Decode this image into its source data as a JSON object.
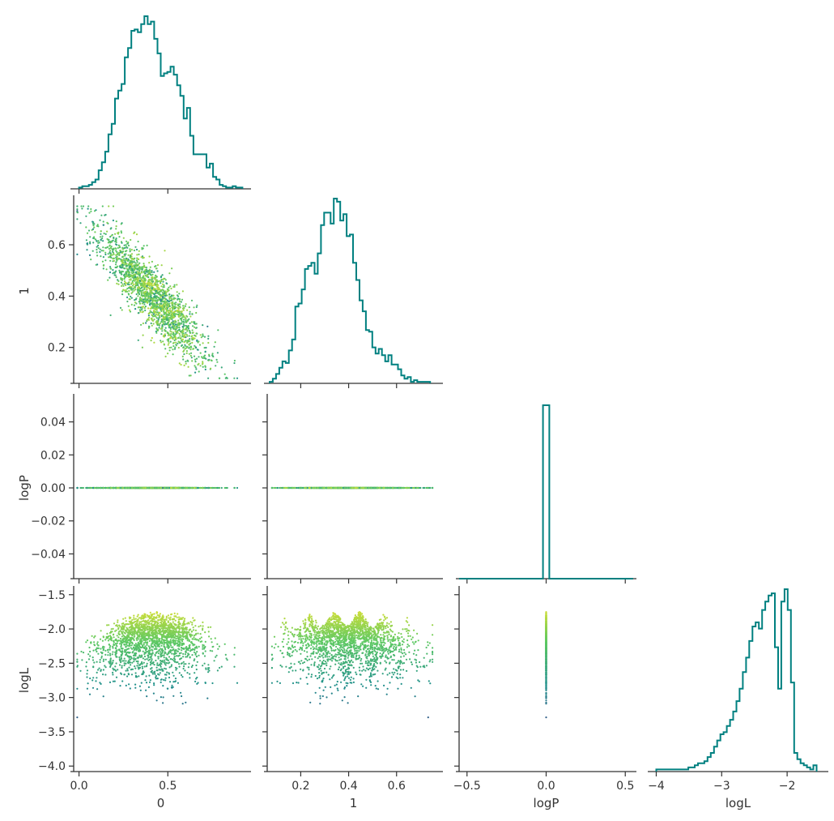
{
  "chart_data": {
    "type": "scatter",
    "layout": "corner-pairplot",
    "variables": [
      "0",
      "1",
      "logP",
      "logL"
    ],
    "axis_labels": {
      "x": [
        "0",
        "1",
        "logP",
        "logL"
      ],
      "y": [
        "1",
        "logP",
        "logL"
      ]
    },
    "ranges": {
      "0": [
        -0.03,
        0.95
      ],
      "1": [
        0.06,
        0.78
      ],
      "logP": [
        -0.055,
        0.055
      ],
      "logL": [
        -4.08,
        -1.42
      ]
    },
    "ticks": {
      "0": {
        "values": [
          0,
          0.5
        ],
        "labels": [
          "0.0",
          "0.5"
        ]
      },
      "1": {
        "values": [
          0.2,
          0.4,
          0.6
        ],
        "labels": [
          "0.2",
          "0.4",
          "0.6"
        ]
      },
      "logP": {
        "values": [
          -0.04,
          -0.02,
          0,
          0.02,
          0.04
        ],
        "labels": [
          "−0.04",
          "−0.02",
          "0.00",
          "0.02",
          "0.04"
        ]
      },
      "logP_x": {
        "values": [
          -0.5,
          0,
          0.5
        ],
        "labels": [
          "−0.5",
          "0.0",
          "0.5"
        ]
      },
      "logL_y": {
        "values": [
          -4,
          -3.5,
          -3,
          -2.5,
          -2,
          -1.5
        ],
        "labels": [
          "−4.0",
          "−3.5",
          "−3.0",
          "−2.5",
          "−2.0",
          "−1.5"
        ]
      },
      "logL_x": {
        "values": [
          -4,
          -3,
          -2
        ],
        "labels": [
          "−4",
          "−3",
          "−2"
        ]
      }
    },
    "logP_x_range": [
      -0.55,
      0.55
    ],
    "histogram_color": "#008080",
    "colormap": "viridis",
    "color_by": "logL",
    "marginals": {
      "0": {
        "edges_range": [
          0.0,
          0.92
        ],
        "counts": [
          1,
          2,
          2,
          3,
          5,
          7,
          14,
          20,
          28,
          41,
          49,
          68,
          74,
          79,
          99,
          106,
          119,
          120,
          118,
          124,
          130,
          124,
          126,
          113,
          102,
          85,
          87,
          88,
          92,
          86,
          78,
          70,
          53,
          61,
          40,
          26,
          26,
          26,
          26,
          16,
          19,
          9,
          7,
          3,
          2,
          1,
          1,
          2,
          1,
          1
        ]
      },
      "1": {
        "edges_range": [
          0.07,
          0.74
        ],
        "counts": [
          1,
          3,
          6,
          10,
          14,
          13,
          21,
          28,
          49,
          51,
          60,
          73,
          75,
          77,
          70,
          83,
          101,
          109,
          109,
          102,
          118,
          116,
          104,
          108,
          94,
          95,
          77,
          66,
          53,
          46,
          34,
          33,
          23,
          19,
          22,
          18,
          14,
          18,
          12,
          12,
          9,
          5,
          3,
          4,
          1,
          2,
          1,
          1,
          1,
          1
        ]
      },
      "logP": {
        "spike_at": 0.0
      },
      "logL": {
        "edges_range": [
          -4.0,
          -1.55
        ],
        "counts": [
          1,
          1,
          1,
          1,
          1,
          1,
          1,
          1,
          1,
          1,
          2,
          2,
          3,
          4,
          4,
          5,
          7,
          9,
          12,
          15,
          18,
          19,
          22,
          25,
          29,
          34,
          40,
          48,
          55,
          63,
          70,
          72,
          69,
          78,
          82,
          85,
          86,
          60,
          40,
          82,
          88,
          78,
          43,
          9,
          6,
          4,
          3,
          2,
          1,
          3
        ]
      }
    },
    "scatter_note_count": 2000
  }
}
